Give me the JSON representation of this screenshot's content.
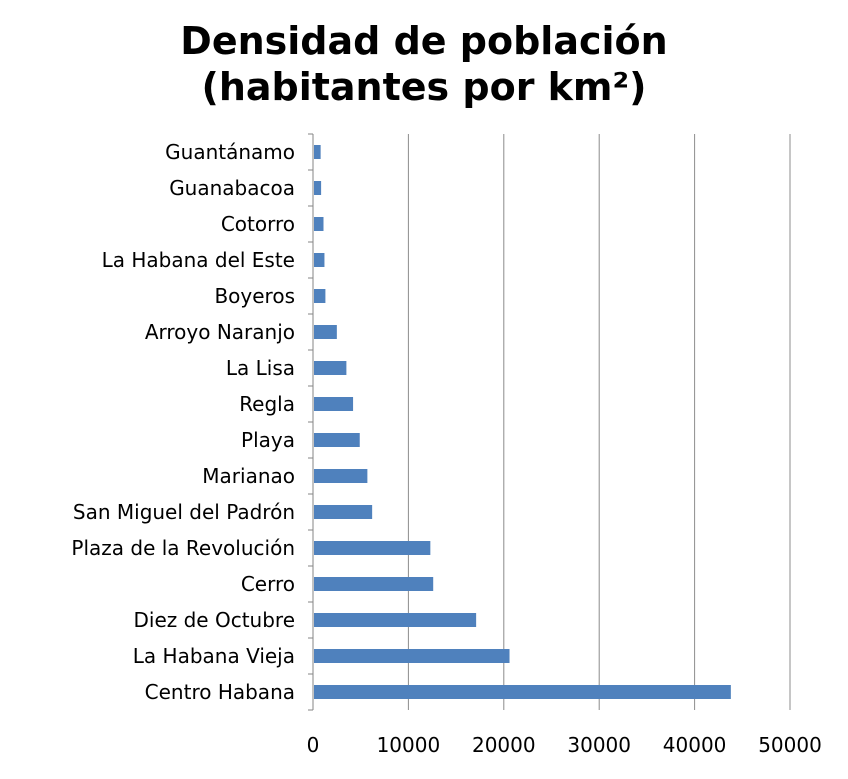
{
  "chart_data": {
    "type": "bar",
    "orientation": "horizontal",
    "title_line1": "Densidad de población",
    "title_line2": "(habitantes por km²)",
    "xlabel": "",
    "ylabel": "",
    "xlim": [
      0,
      50000
    ],
    "xticks": [
      0,
      10000,
      20000,
      30000,
      40000,
      50000
    ],
    "grid": true,
    "legend": "none",
    "bar_color": "#4f81bd",
    "categories": [
      "Guantánamo",
      "Guanabacoa",
      "Cotorro",
      "La Habana del Este",
      "Boyeros",
      "Arroyo Naranjo",
      "La Lisa",
      "Regla",
      "Playa",
      "Marianao",
      "San Miguel del Padrón",
      "Plaza de la Revolución",
      "Cerro",
      "Diez de Octubre",
      "La Habana Vieja",
      "Centro Habana"
    ],
    "values": [
      800,
      850,
      1100,
      1200,
      1300,
      2500,
      3500,
      4200,
      4900,
      5700,
      6200,
      12300,
      12600,
      17100,
      20600,
      43800
    ]
  }
}
